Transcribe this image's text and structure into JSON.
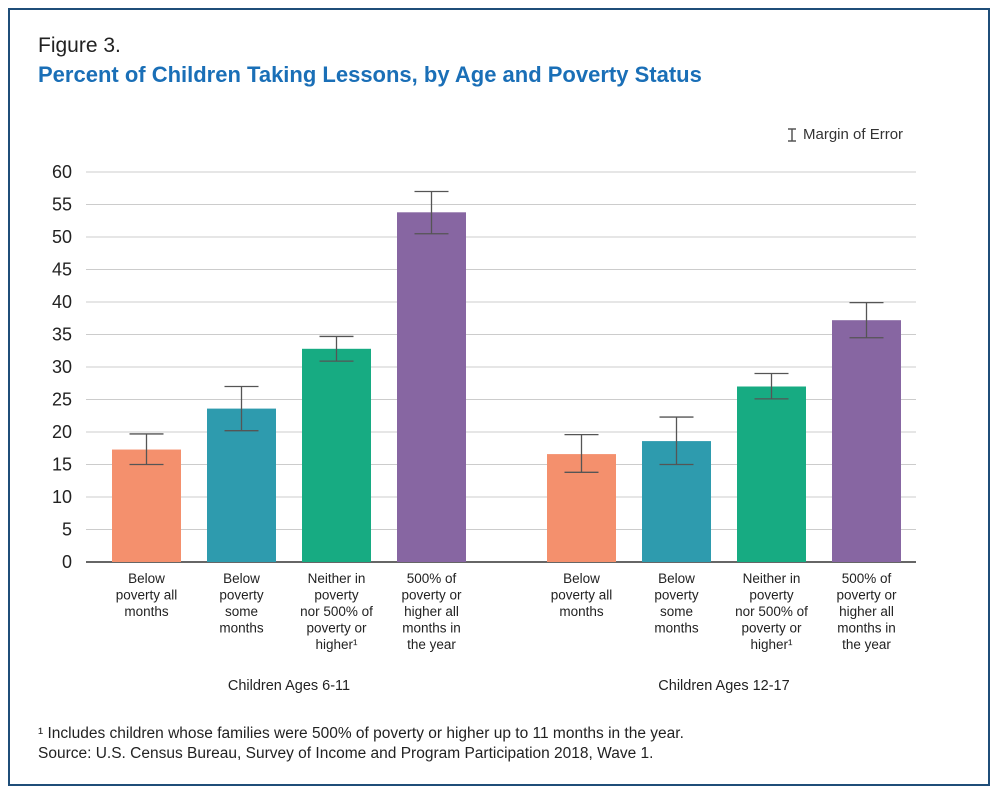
{
  "figure_label": "Figure 3.",
  "title": "Percent of Children Taking Lessons, by Age and Poverty Status",
  "legend": {
    "label": "Margin of Error"
  },
  "footnote": "¹ Includes children whose families were 500% of poverty or higher up to 11 months in the year.",
  "source": "Source: U.S. Census Bureau, Survey of Income and Program Participation 2018, Wave 1.",
  "colors": {
    "below_all": "#f4906d",
    "below_some": "#2e9bae",
    "neither": "#17ab82",
    "high_all": "#8766a2",
    "grid": "#cccccc",
    "error_bar": "#555555"
  },
  "chart_data": {
    "type": "bar",
    "ylim": [
      0,
      60
    ],
    "yticks": [
      0,
      5,
      10,
      15,
      20,
      25,
      30,
      35,
      40,
      45,
      50,
      55,
      60
    ],
    "grid": true,
    "legend_position": "top-right",
    "groups": [
      {
        "name": "Children Ages 6-11",
        "bars": [
          {
            "label_lines": [
              "Below",
              "poverty all",
              "months"
            ],
            "value": 17.3,
            "moe_low": 15.0,
            "moe_high": 19.7,
            "color_key": "below_all"
          },
          {
            "label_lines": [
              "Below",
              "poverty",
              "some",
              "months"
            ],
            "value": 23.6,
            "moe_low": 20.2,
            "moe_high": 27.0,
            "color_key": "below_some"
          },
          {
            "label_lines": [
              "Neither in",
              "poverty",
              "nor 500% of",
              "poverty or",
              "higher¹"
            ],
            "value": 32.8,
            "moe_low": 30.9,
            "moe_high": 34.7,
            "color_key": "neither"
          },
          {
            "label_lines": [
              "500% of",
              "poverty or",
              "higher all",
              "months in",
              "the year"
            ],
            "value": 53.8,
            "moe_low": 50.5,
            "moe_high": 57.0,
            "color_key": "high_all"
          }
        ]
      },
      {
        "name": "Children Ages 12-17",
        "bars": [
          {
            "label_lines": [
              "Below",
              "poverty all",
              "months"
            ],
            "value": 16.6,
            "moe_low": 13.8,
            "moe_high": 19.6,
            "color_key": "below_all"
          },
          {
            "label_lines": [
              "Below",
              "poverty",
              "some",
              "months"
            ],
            "value": 18.6,
            "moe_low": 15.0,
            "moe_high": 22.3,
            "color_key": "below_some"
          },
          {
            "label_lines": [
              "Neither in",
              "poverty",
              "nor 500% of",
              "poverty or",
              "higher¹"
            ],
            "value": 27.0,
            "moe_low": 25.1,
            "moe_high": 29.0,
            "color_key": "neither"
          },
          {
            "label_lines": [
              "500% of",
              "poverty or",
              "higher all",
              "months in",
              "the year"
            ],
            "value": 37.2,
            "moe_low": 34.5,
            "moe_high": 39.9,
            "color_key": "high_all"
          }
        ]
      }
    ]
  }
}
